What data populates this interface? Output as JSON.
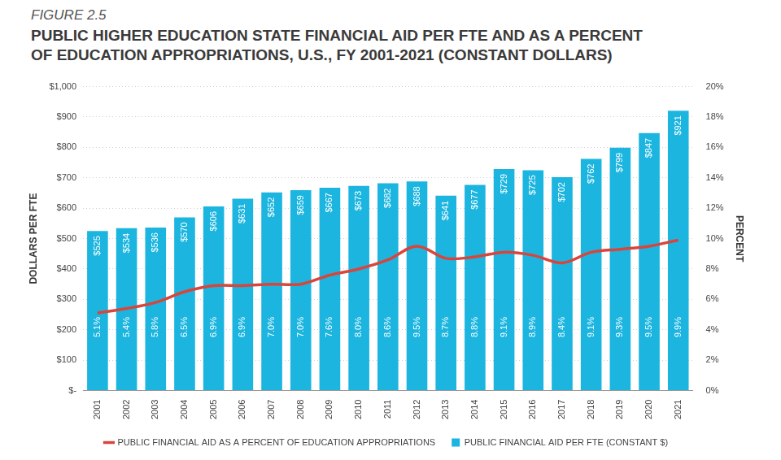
{
  "chart_data": {
    "type": "bar",
    "figure_label": "FIGURE 2.5",
    "title": "PUBLIC HIGHER EDUCATION STATE FINANCIAL AID PER FTE AND AS A PERCENT\nOF EDUCATION APPROPRIATIONS, U.S., FY 2001-2021 (CONSTANT DOLLARS)",
    "y_label": "DOLLARS PER FTE",
    "y2_label": "PERCENT",
    "categories": [
      "2001",
      "2002",
      "2003",
      "2004",
      "2005",
      "2006",
      "2007",
      "2008",
      "2009",
      "2010",
      "2011",
      "2012",
      "2013",
      "2014",
      "2015",
      "2016",
      "2017",
      "2018",
      "2019",
      "2020",
      "2021"
    ],
    "series": [
      {
        "name": "PUBLIC FINANCIAL AID PER FTE (CONSTANT $)",
        "type": "bar",
        "color": "#1bb5e0",
        "values": [
          525,
          534,
          536,
          570,
          606,
          631,
          652,
          659,
          667,
          673,
          682,
          688,
          641,
          677,
          729,
          725,
          702,
          762,
          799,
          847,
          921
        ],
        "value_labels": [
          "$525",
          "$534",
          "$536",
          "$570",
          "$606",
          "$631",
          "$652",
          "$659",
          "$667",
          "$673",
          "$682",
          "$688",
          "$641",
          "$677",
          "$729",
          "$725",
          "$702",
          "$762",
          "$799",
          "$847",
          "$921"
        ]
      },
      {
        "name": "PUBLIC FINANCIAL AID AS A PERCENT OF EDUCATION APPROPRIATIONS",
        "type": "line",
        "axis": "y2",
        "color": "#d9453b",
        "values": [
          5.1,
          5.4,
          5.8,
          6.5,
          6.9,
          6.9,
          7.0,
          7.0,
          7.6,
          8.0,
          8.6,
          9.5,
          8.7,
          8.8,
          9.1,
          8.9,
          8.4,
          9.1,
          9.3,
          9.5,
          9.9
        ],
        "value_labels": [
          "5.1%",
          "5.4%",
          "5.8%",
          "6.5%",
          "6.9%",
          "6.9%",
          "7.0%",
          "7.0%",
          "7.6%",
          "8.0%",
          "8.6%",
          "9.5%",
          "8.7%",
          "8.8%",
          "9.1%",
          "8.9%",
          "8.4%",
          "9.1%",
          "9.3%",
          "9.5%",
          "9.9%"
        ]
      }
    ],
    "ylim": [
      0,
      1000
    ],
    "yticks": [
      {
        "value": 0,
        "label": "$-"
      },
      {
        "value": 100,
        "label": "$100"
      },
      {
        "value": 200,
        "label": "$200"
      },
      {
        "value": 300,
        "label": "$300"
      },
      {
        "value": 400,
        "label": "$400"
      },
      {
        "value": 500,
        "label": "$500"
      },
      {
        "value": 600,
        "label": "$600"
      },
      {
        "value": 700,
        "label": "$700"
      },
      {
        "value": 800,
        "label": "$800"
      },
      {
        "value": 900,
        "label": "$900"
      },
      {
        "value": 1000,
        "label": "$1,000"
      }
    ],
    "y2lim": [
      0,
      20
    ],
    "y2ticks": [
      {
        "value": 0,
        "label": "0%"
      },
      {
        "value": 2,
        "label": "2%"
      },
      {
        "value": 4,
        "label": "4%"
      },
      {
        "value": 6,
        "label": "6%"
      },
      {
        "value": 8,
        "label": "8%"
      },
      {
        "value": 10,
        "label": "10%"
      },
      {
        "value": 12,
        "label": "12%"
      },
      {
        "value": 14,
        "label": "14%"
      },
      {
        "value": 16,
        "label": "16%"
      },
      {
        "value": 18,
        "label": "18%"
      },
      {
        "value": 20,
        "label": "20%"
      }
    ],
    "grid": true,
    "legend": "bottom",
    "data_labels": true
  }
}
